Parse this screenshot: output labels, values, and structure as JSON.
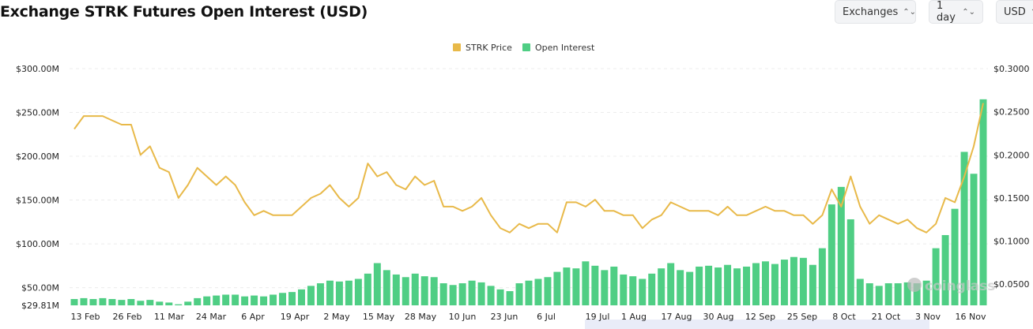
{
  "header": {
    "title": "Exchange STRK Futures Open Interest (USD)"
  },
  "controls": [
    {
      "label": "Exchanges"
    },
    {
      "label": "1 day"
    },
    {
      "label": "USD"
    }
  ],
  "watermark": "coinglass",
  "chart_data": {
    "type": "bar+line",
    "title": "Exchange STRK Futures Open Interest (USD)",
    "legend": {
      "placement": "top-center",
      "entries": [
        "STRK Price",
        "Open Interest"
      ]
    },
    "colors": {
      "price": "#e8b949",
      "oi": "#4fce84"
    },
    "y_left": {
      "ticks": [
        "$300.00M",
        "$250.00M",
        "$200.00M",
        "$150.00M",
        "$100.00M",
        "$50.00M",
        "$29.81M"
      ],
      "range": [
        29.81,
        300
      ]
    },
    "y_right": {
      "ticks": [
        "$0.3000",
        "$0.2500",
        "$0.2000",
        "$0.1500",
        "$0.1000",
        "$0.0500"
      ],
      "range": [
        0.0255,
        0.3
      ]
    },
    "x_ticks": [
      "13 Feb",
      "26 Feb",
      "11 Mar",
      "24 Mar",
      "6 Apr",
      "19 Apr",
      "2 May",
      "15 May",
      "28 May",
      "10 Jun",
      "23 Jun",
      "6 Jul",
      "19 Jul",
      "1 Aug",
      "17 Aug",
      "30 Aug",
      "12 Sep",
      "25 Sep",
      "8 Oct",
      "21 Oct",
      "3 Nov",
      "16 Nov"
    ],
    "grid": true,
    "series_fields": [
      "date",
      "open_interest_musd",
      "strk_price_usd"
    ],
    "points": [
      [
        "8 Feb",
        37,
        0.23
      ],
      [
        "11 Feb",
        38,
        0.245
      ],
      [
        "14 Feb",
        37,
        0.245
      ],
      [
        "17 Feb",
        38,
        0.245
      ],
      [
        "20 Feb",
        37,
        0.24
      ],
      [
        "23 Feb",
        36,
        0.235
      ],
      [
        "26 Feb",
        37,
        0.235
      ],
      [
        "29 Feb",
        35,
        0.2
      ],
      [
        "3 Mar",
        36,
        0.21
      ],
      [
        "6 Mar",
        34,
        0.185
      ],
      [
        "9 Mar",
        33,
        0.18
      ],
      [
        "12 Mar",
        31,
        0.15
      ],
      [
        "15 Mar",
        34,
        0.165
      ],
      [
        "18 Mar",
        38,
        0.185
      ],
      [
        "21 Mar",
        40,
        0.175
      ],
      [
        "24 Mar",
        41,
        0.165
      ],
      [
        "27 Mar",
        42,
        0.175
      ],
      [
        "30 Mar",
        42,
        0.165
      ],
      [
        "2 Apr",
        40,
        0.145
      ],
      [
        "5 Apr",
        41,
        0.13
      ],
      [
        "8 Apr",
        40,
        0.135
      ],
      [
        "11 Apr",
        42,
        0.13
      ],
      [
        "14 Apr",
        44,
        0.13
      ],
      [
        "17 Apr",
        45,
        0.13
      ],
      [
        "20 Apr",
        48,
        0.14
      ],
      [
        "23 Apr",
        52,
        0.15
      ],
      [
        "26 Apr",
        55,
        0.155
      ],
      [
        "29 Apr",
        58,
        0.165
      ],
      [
        "2 May",
        57,
        0.15
      ],
      [
        "5 May",
        58,
        0.14
      ],
      [
        "8 May",
        60,
        0.15
      ],
      [
        "11 May",
        66,
        0.19
      ],
      [
        "14 May",
        78,
        0.175
      ],
      [
        "17 May",
        70,
        0.18
      ],
      [
        "20 May",
        65,
        0.165
      ],
      [
        "23 May",
        62,
        0.16
      ],
      [
        "26 May",
        66,
        0.175
      ],
      [
        "29 May",
        63,
        0.165
      ],
      [
        "1 Jun",
        62,
        0.17
      ],
      [
        "4 Jun",
        55,
        0.14
      ],
      [
        "7 Jun",
        53,
        0.14
      ],
      [
        "10 Jun",
        55,
        0.135
      ],
      [
        "13 Jun",
        58,
        0.14
      ],
      [
        "16 Jun",
        56,
        0.15
      ],
      [
        "19 Jun",
        52,
        0.13
      ],
      [
        "22 Jun",
        48,
        0.115
      ],
      [
        "25 Jun",
        46,
        0.11
      ],
      [
        "28 Jun",
        55,
        0.12
      ],
      [
        "1 Jul",
        58,
        0.115
      ],
      [
        "4 Jul",
        60,
        0.12
      ],
      [
        "7 Jul",
        62,
        0.12
      ],
      [
        "10 Jul",
        68,
        0.11
      ],
      [
        "13 Jul",
        73,
        0.145
      ],
      [
        "16 Jul",
        72,
        0.145
      ],
      [
        "19 Jul",
        80,
        0.14
      ],
      [
        "22 Jul",
        75,
        0.148
      ],
      [
        "25 Jul",
        70,
        0.135
      ],
      [
        "28 Jul",
        74,
        0.135
      ],
      [
        "31 Jul",
        65,
        0.13
      ],
      [
        "3 Aug",
        63,
        0.13
      ],
      [
        "6 Aug",
        60,
        0.115
      ],
      [
        "9 Aug",
        66,
        0.125
      ],
      [
        "12 Aug",
        72,
        0.13
      ],
      [
        "15 Aug",
        78,
        0.145
      ],
      [
        "18 Aug",
        70,
        0.14
      ],
      [
        "21 Aug",
        68,
        0.135
      ],
      [
        "24 Aug",
        74,
        0.135
      ],
      [
        "27 Aug",
        75,
        0.135
      ],
      [
        "30 Aug",
        73,
        0.13
      ],
      [
        "2 Sep",
        76,
        0.14
      ],
      [
        "5 Sep",
        72,
        0.13
      ],
      [
        "8 Sep",
        74,
        0.13
      ],
      [
        "11 Sep",
        78,
        0.135
      ],
      [
        "14 Sep",
        80,
        0.14
      ],
      [
        "17 Sep",
        77,
        0.135
      ],
      [
        "20 Sep",
        82,
        0.135
      ],
      [
        "23 Sep",
        85,
        0.13
      ],
      [
        "26 Sep",
        84,
        0.13
      ],
      [
        "29 Sep",
        76,
        0.12
      ],
      [
        "2 Oct",
        95,
        0.13
      ],
      [
        "5 Oct",
        145,
        0.16
      ],
      [
        "8 Oct",
        165,
        0.14
      ],
      [
        "11 Oct",
        128,
        0.175
      ],
      [
        "14 Oct",
        60,
        0.14
      ],
      [
        "17 Oct",
        55,
        0.12
      ],
      [
        "20 Oct",
        52,
        0.13
      ],
      [
        "23 Oct",
        55,
        0.125
      ],
      [
        "26 Oct",
        55,
        0.12
      ],
      [
        "29 Oct",
        56,
        0.125
      ],
      [
        "1 Nov",
        55,
        0.115
      ],
      [
        "4 Nov",
        58,
        0.11
      ],
      [
        "7 Nov",
        95,
        0.12
      ],
      [
        "10 Nov",
        110,
        0.15
      ],
      [
        "13 Nov",
        140,
        0.145
      ],
      [
        "16 Nov",
        205,
        0.175
      ],
      [
        "19 Nov",
        180,
        0.21
      ],
      [
        "22 Nov",
        265,
        0.26
      ]
    ]
  }
}
